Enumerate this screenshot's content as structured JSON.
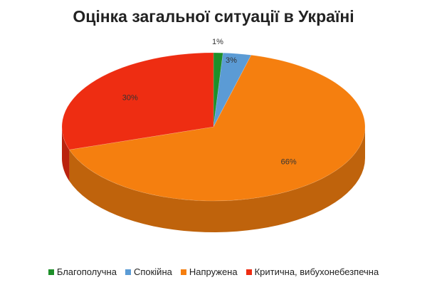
{
  "chart_data": {
    "type": "pie",
    "title": "Оцінка загальної ситуації в Україні",
    "slices": [
      {
        "label": "Благополучна",
        "value": 1,
        "value_label": "1%",
        "color": "#1e8f2a"
      },
      {
        "label": "Спокійна",
        "value": 3,
        "value_label": "3%",
        "color": "#5b9bd5"
      },
      {
        "label": "Напружена",
        "value": 66,
        "value_label": "66%",
        "color": "#f57f0f"
      },
      {
        "label": "Критична, вибухонебезпечна",
        "value": 30,
        "value_label": "30%",
        "color": "#ee2d12"
      }
    ],
    "legend_position": "bottom",
    "style": "3d"
  }
}
